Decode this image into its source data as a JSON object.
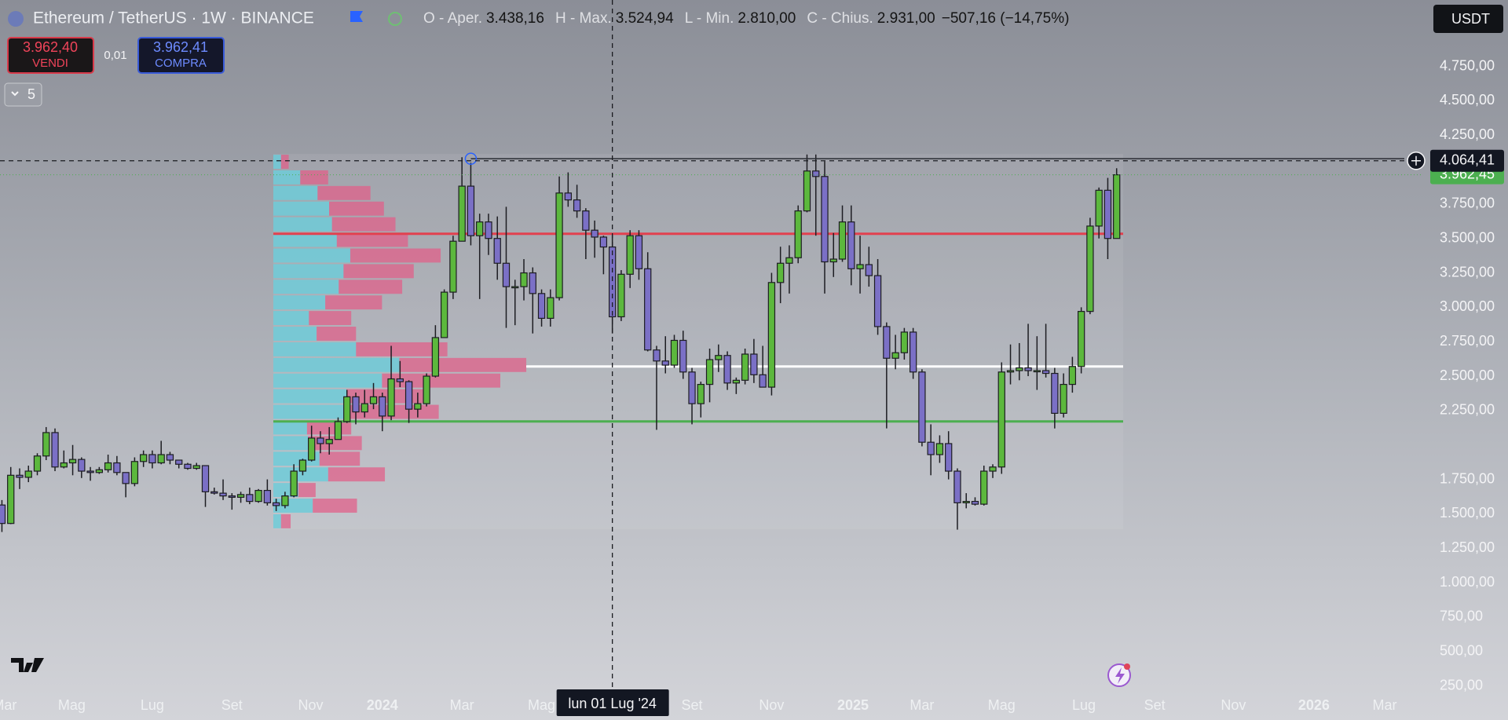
{
  "chart_data": {
    "type": "candlestick",
    "title": "Ethereum / TetherUS · 1W · BINANCE",
    "legend": [
      {
        "label": "O - Aper.",
        "value": "3.438,16"
      },
      {
        "label": "H - Max.",
        "value": "3.524,94"
      },
      {
        "label": "L - Min.",
        "value": "2.810,00"
      },
      {
        "label": "C - Chius.",
        "value": "2.931,00"
      }
    ],
    "change": "−507,16 (−14,75%)",
    "sell": {
      "price": "3.962,40",
      "label": "VENDI"
    },
    "spread": "0,01",
    "buy": {
      "price": "3.962,41",
      "label": "COMPRA"
    },
    "indicators": "5",
    "currency": "USDT",
    "up_color": "#5cb83d",
    "down_color": "#7b70c6",
    "xlim": [
      -0.217,
      160.65
    ],
    "ylim": [
      202,
      5232
    ],
    "yticks": [
      {
        "value": 4750,
        "label": "4.750,00"
      },
      {
        "value": 4500,
        "label": "4.500,00"
      },
      {
        "value": 4250,
        "label": "4.250,00"
      },
      {
        "value": 3750,
        "label": "3.750,00"
      },
      {
        "value": 3500,
        "label": "3.500,00"
      },
      {
        "value": 3250,
        "label": "3.250,00"
      },
      {
        "value": 3000,
        "label": "3.000,00"
      },
      {
        "value": 2750,
        "label": "2.750,00"
      },
      {
        "value": 2500,
        "label": "2.500,00"
      },
      {
        "value": 2250,
        "label": "2.250,00"
      },
      {
        "value": 1750,
        "label": "1.750,00"
      },
      {
        "value": 1500,
        "label": "1.500,00"
      },
      {
        "value": 1250,
        "label": "1.250,00"
      },
      {
        "value": 1000,
        "label": "1.000,00"
      },
      {
        "value": 750,
        "label": "750,00"
      },
      {
        "value": 500,
        "label": "500,00"
      },
      {
        "value": 250,
        "label": "250,00"
      }
    ],
    "xticks": [
      {
        "value": 0.3,
        "label": "Mar"
      },
      {
        "value": 7.9,
        "label": "Mag"
      },
      {
        "value": 17,
        "label": "Lug"
      },
      {
        "value": 26,
        "label": "Set"
      },
      {
        "value": 34.9,
        "label": "Nov"
      },
      {
        "value": 43,
        "label": "2024"
      },
      {
        "value": 52,
        "label": "Mar"
      },
      {
        "value": 61,
        "label": "Mag"
      },
      {
        "value": 78,
        "label": "Set"
      },
      {
        "value": 87,
        "label": "Nov"
      },
      {
        "value": 96.2,
        "label": "2025"
      },
      {
        "value": 104,
        "label": "Mar"
      },
      {
        "value": 113,
        "label": "Mag"
      },
      {
        "value": 122.3,
        "label": "Lug"
      },
      {
        "value": 130.3,
        "label": "Set"
      },
      {
        "value": 139.2,
        "label": "Nov"
      },
      {
        "value": 148.3,
        "label": "2026"
      },
      {
        "value": 156.3,
        "label": "Mar"
      }
    ],
    "ohlc": [
      [
        1564,
        1600,
        1368,
        1430
      ],
      [
        1430,
        1840,
        1425,
        1780
      ],
      [
        1780,
        1830,
        1680,
        1765
      ],
      [
        1765,
        1850,
        1730,
        1810
      ],
      [
        1810,
        1940,
        1780,
        1920
      ],
      [
        1920,
        2130,
        1890,
        2090
      ],
      [
        2090,
        2120,
        1810,
        1840
      ],
      [
        1840,
        1960,
        1830,
        1870
      ],
      [
        1870,
        2000,
        1780,
        1895
      ],
      [
        1895,
        1910,
        1760,
        1810
      ],
      [
        1810,
        1840,
        1740,
        1800
      ],
      [
        1800,
        1840,
        1790,
        1820
      ],
      [
        1820,
        1930,
        1800,
        1870
      ],
      [
        1870,
        1920,
        1780,
        1800
      ],
      [
        1800,
        1800,
        1620,
        1720
      ],
      [
        1720,
        1910,
        1700,
        1880
      ],
      [
        1880,
        1960,
        1840,
        1930
      ],
      [
        1930,
        1960,
        1830,
        1870
      ],
      [
        1870,
        2030,
        1860,
        1930
      ],
      [
        1930,
        1950,
        1860,
        1890
      ],
      [
        1890,
        1890,
        1830,
        1860
      ],
      [
        1860,
        1870,
        1820,
        1830
      ],
      [
        1830,
        1870,
        1820,
        1850
      ],
      [
        1850,
        1850,
        1550,
        1660
      ],
      [
        1660,
        1690,
        1640,
        1650
      ],
      [
        1650,
        1750,
        1600,
        1630
      ],
      [
        1630,
        1650,
        1530,
        1620
      ],
      [
        1620,
        1660,
        1580,
        1640
      ],
      [
        1640,
        1690,
        1570,
        1590
      ],
      [
        1590,
        1680,
        1580,
        1670
      ],
      [
        1670,
        1750,
        1560,
        1580
      ],
      [
        1580,
        1610,
        1520,
        1560
      ],
      [
        1560,
        1660,
        1540,
        1630
      ],
      [
        1630,
        1860,
        1620,
        1810
      ],
      [
        1810,
        1900,
        1780,
        1890
      ],
      [
        1890,
        2140,
        1880,
        2050
      ],
      [
        2050,
        2100,
        1940,
        2010
      ],
      [
        2010,
        2130,
        1930,
        2040
      ],
      [
        2040,
        2200,
        2040,
        2170
      ],
      [
        2170,
        2400,
        2160,
        2350
      ],
      [
        2350,
        2380,
        2150,
        2240
      ],
      [
        2240,
        2400,
        2200,
        2300
      ],
      [
        2300,
        2450,
        2260,
        2350
      ],
      [
        2350,
        2380,
        2100,
        2210
      ],
      [
        2210,
        2720,
        2180,
        2480
      ],
      [
        2480,
        2610,
        2420,
        2460
      ],
      [
        2460,
        2470,
        2160,
        2260
      ],
      [
        2260,
        2380,
        2200,
        2300
      ],
      [
        2300,
        2520,
        2280,
        2500
      ],
      [
        2500,
        2870,
        2490,
        2780
      ],
      [
        2780,
        3130,
        2780,
        3110
      ],
      [
        3110,
        3520,
        3060,
        3480
      ],
      [
        3480,
        4090,
        3480,
        3880
      ],
      [
        3880,
        4050,
        3450,
        3520
      ],
      [
        3520,
        3680,
        3060,
        3620
      ],
      [
        3620,
        3680,
        3380,
        3500
      ],
      [
        3500,
        3660,
        3200,
        3320
      ],
      [
        3320,
        3730,
        2850,
        3150
      ],
      [
        3150,
        3200,
        2870,
        3150
      ],
      [
        3150,
        3350,
        3050,
        3250
      ],
      [
        3250,
        3290,
        2810,
        3100
      ],
      [
        3100,
        3130,
        2860,
        2920
      ],
      [
        2920,
        3130,
        2860,
        3070
      ],
      [
        3070,
        3950,
        3050,
        3830
      ],
      [
        3830,
        3980,
        3730,
        3780
      ],
      [
        3780,
        3890,
        3650,
        3700
      ],
      [
        3700,
        3720,
        3350,
        3560
      ],
      [
        3560,
        3630,
        3360,
        3510
      ],
      [
        3510,
        3520,
        3240,
        3438
      ],
      [
        3438.16,
        3524.94,
        2810,
        2931
      ],
      [
        2931,
        3270,
        2900,
        3240
      ],
      [
        3240,
        3560,
        3140,
        3520
      ],
      [
        3520,
        3560,
        3200,
        3280
      ],
      [
        3280,
        3400,
        2680,
        2690
      ],
      [
        2690,
        2720,
        2110,
        2610
      ],
      [
        2610,
        2790,
        2520,
        2580
      ],
      [
        2580,
        2800,
        2560,
        2760
      ],
      [
        2760,
        2830,
        2480,
        2530
      ],
      [
        2530,
        2560,
        2150,
        2300
      ],
      [
        2300,
        2460,
        2200,
        2440
      ],
      [
        2440,
        2700,
        2310,
        2620
      ],
      [
        2620,
        2730,
        2530,
        2650
      ],
      [
        2650,
        2680,
        2400,
        2450
      ],
      [
        2450,
        2490,
        2370,
        2470
      ],
      [
        2470,
        2700,
        2440,
        2660
      ],
      [
        2660,
        2770,
        2450,
        2510
      ],
      [
        2510,
        2720,
        2420,
        2420
      ],
      [
        2420,
        3250,
        2360,
        3180
      ],
      [
        3180,
        3440,
        3030,
        3320
      ],
      [
        3320,
        3450,
        3100,
        3360
      ],
      [
        3360,
        3740,
        3320,
        3700
      ],
      [
        3700,
        4110,
        3690,
        3990
      ],
      [
        3990,
        4110,
        3520,
        3950
      ],
      [
        3950,
        4060,
        3100,
        3330
      ],
      [
        3330,
        3540,
        3220,
        3350
      ],
      [
        3350,
        3740,
        3330,
        3620
      ],
      [
        3620,
        3740,
        3160,
        3280
      ],
      [
        3280,
        3520,
        3100,
        3310
      ],
      [
        3310,
        3440,
        3150,
        3230
      ],
      [
        3230,
        3350,
        2800,
        2860
      ],
      [
        2860,
        2890,
        2120,
        2630
      ],
      [
        2630,
        2800,
        2550,
        2670
      ],
      [
        2670,
        2850,
        2620,
        2820
      ],
      [
        2820,
        2850,
        2480,
        2530
      ],
      [
        2530,
        2550,
        1990,
        2020
      ],
      [
        2020,
        2150,
        1780,
        1930
      ],
      [
        1930,
        2070,
        1870,
        2010
      ],
      [
        2010,
        2100,
        1750,
        1810
      ],
      [
        1810,
        1830,
        1385,
        1580
      ],
      [
        1580,
        1650,
        1540,
        1590
      ],
      [
        1590,
        1620,
        1560,
        1570
      ],
      [
        1570,
        1850,
        1560,
        1810
      ],
      [
        1810,
        1860,
        1760,
        1840
      ],
      [
        1840,
        2600,
        1790,
        2530
      ],
      [
        2530,
        2730,
        2440,
        2540
      ],
      [
        2540,
        2740,
        2470,
        2560
      ],
      [
        2560,
        2880,
        2500,
        2540
      ],
      [
        2540,
        2790,
        2400,
        2540
      ],
      [
        2540,
        2880,
        2490,
        2520
      ],
      [
        2520,
        2560,
        2120,
        2230
      ],
      [
        2230,
        2520,
        2200,
        2440
      ],
      [
        2440,
        2640,
        2380,
        2570
      ],
      [
        2570,
        3000,
        2520,
        2970
      ],
      [
        2970,
        3650,
        2950,
        3590
      ],
      [
        3590,
        3870,
        3500,
        3850
      ],
      [
        3850,
        3940,
        3350,
        3500
      ],
      [
        3500,
        4010,
        3500,
        3962.45
      ]
    ],
    "volume_profile": {
      "price_range": [
        1389,
        4114
      ],
      "up_color": "#6fcbd8",
      "down_color": "#e0608a",
      "up": [
        8,
        28,
        46,
        58,
        61,
        66,
        80,
        73,
        68,
        54,
        37,
        45,
        86,
        131,
        113,
        76,
        74,
        35,
        36,
        48,
        57,
        26,
        41,
        8
      ],
      "down": [
        8,
        29,
        55,
        57,
        66,
        74,
        94,
        73,
        66,
        59,
        44,
        41,
        95,
        132,
        123,
        83,
        98,
        46,
        56,
        42,
        59,
        18,
        46,
        10
      ]
    },
    "levels": [
      {
        "value": 3534,
        "color": "#e2414f"
      },
      {
        "value": 2570,
        "color": "#ffffff"
      },
      {
        "value": 2171,
        "color": "#4caf50"
      }
    ],
    "ray": {
      "value": 4079,
      "from_index": 53
    },
    "crosshair": {
      "index": 69,
      "label": "lun 01 Lug '24",
      "price": {
        "value": 4064.41,
        "label": "4.064,41"
      }
    },
    "last_price": {
      "value": 3962.45,
      "label": "3.962,45",
      "color": "#4caf50"
    }
  }
}
